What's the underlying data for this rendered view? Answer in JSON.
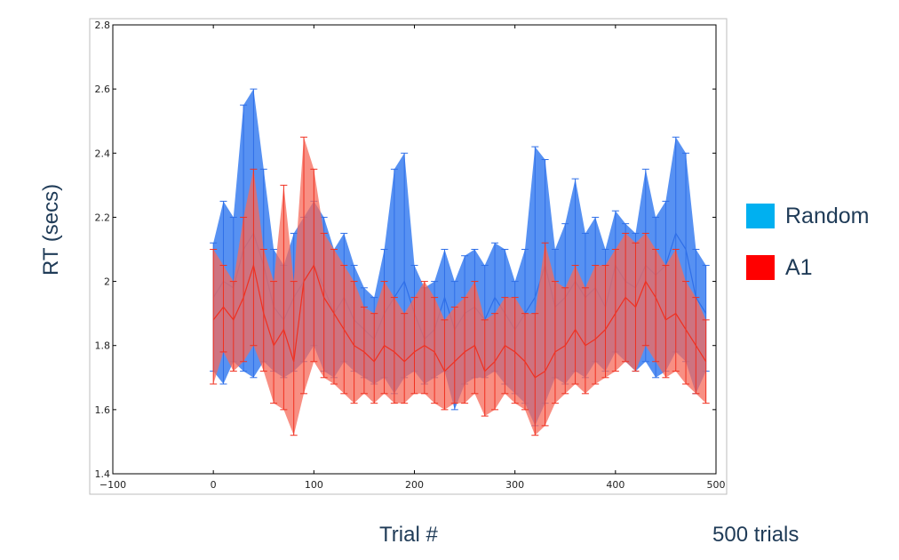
{
  "chart_data": {
    "type": "line",
    "xlabel": "Trial #",
    "ylabel": "RT (secs)",
    "annotation": "500 trials",
    "xlim": [
      -100,
      500
    ],
    "ylim": [
      1.4,
      2.8
    ],
    "xticks": [
      "−100",
      "0",
      "100",
      "200",
      "300",
      "400",
      "500"
    ],
    "xtick_values": [
      -100,
      0,
      100,
      200,
      300,
      400,
      500
    ],
    "yticks": [
      "1.4",
      "1.6",
      "1.8",
      "2",
      "2.2",
      "2.4",
      "2.6",
      "2.8"
    ],
    "ytick_values": [
      1.4,
      1.6,
      1.8,
      2.0,
      2.2,
      2.4,
      2.6,
      2.8
    ],
    "grid": false,
    "legend_position": "right, outside",
    "x": [
      0,
      10,
      20,
      30,
      40,
      50,
      60,
      70,
      80,
      90,
      100,
      110,
      120,
      130,
      140,
      150,
      160,
      170,
      180,
      190,
      200,
      210,
      220,
      230,
      240,
      250,
      260,
      270,
      280,
      290,
      300,
      310,
      320,
      330,
      340,
      350,
      360,
      370,
      380,
      390,
      400,
      410,
      420,
      430,
      440,
      450,
      460,
      470,
      480,
      490
    ],
    "series": [
      {
        "name": "Random",
        "color": "#2f6fe8",
        "fill": "#3a7ef0",
        "mean": [
          1.95,
          2.0,
          1.98,
          2.1,
          2.15,
          2.05,
          1.92,
          1.88,
          1.95,
          2.0,
          2.05,
          1.98,
          1.9,
          1.95,
          1.88,
          1.85,
          1.82,
          1.9,
          1.95,
          2.0,
          1.9,
          1.82,
          1.85,
          1.95,
          1.85,
          1.9,
          1.92,
          1.88,
          1.95,
          1.9,
          1.85,
          1.9,
          1.95,
          2.05,
          1.92,
          1.95,
          2.0,
          1.95,
          1.98,
          1.92,
          2.05,
          2.0,
          1.98,
          2.05,
          2.02,
          2.05,
          2.15,
          2.1,
          1.95,
          1.9
        ],
        "upper": [
          2.12,
          2.25,
          2.2,
          2.55,
          2.6,
          2.35,
          2.1,
          2.05,
          2.15,
          2.2,
          2.25,
          2.2,
          2.1,
          2.15,
          2.05,
          1.98,
          1.95,
          2.1,
          2.35,
          2.4,
          2.05,
          1.98,
          2.0,
          2.1,
          2.0,
          2.08,
          2.1,
          2.05,
          2.12,
          2.1,
          2.0,
          2.1,
          2.42,
          2.38,
          2.1,
          2.18,
          2.32,
          2.15,
          2.2,
          2.1,
          2.22,
          2.18,
          2.15,
          2.35,
          2.2,
          2.25,
          2.45,
          2.4,
          2.1,
          2.05
        ],
        "lower": [
          1.72,
          1.68,
          1.75,
          1.72,
          1.7,
          1.75,
          1.72,
          1.7,
          1.72,
          1.75,
          1.8,
          1.72,
          1.7,
          1.75,
          1.72,
          1.7,
          1.68,
          1.7,
          1.65,
          1.7,
          1.72,
          1.68,
          1.7,
          1.72,
          1.6,
          1.68,
          1.7,
          1.7,
          1.72,
          1.68,
          1.65,
          1.62,
          1.55,
          1.62,
          1.7,
          1.68,
          1.72,
          1.7,
          1.75,
          1.72,
          1.78,
          1.75,
          1.72,
          1.75,
          1.7,
          1.72,
          1.78,
          1.75,
          1.65,
          1.72
        ]
      },
      {
        "name": "A1",
        "color": "#f03020",
        "fill": "#f66a5a",
        "mean": [
          1.88,
          1.92,
          1.88,
          1.95,
          2.05,
          1.9,
          1.8,
          1.85,
          1.75,
          2.0,
          2.05,
          1.95,
          1.9,
          1.85,
          1.8,
          1.78,
          1.75,
          1.8,
          1.78,
          1.75,
          1.78,
          1.8,
          1.78,
          1.72,
          1.75,
          1.78,
          1.8,
          1.72,
          1.75,
          1.8,
          1.78,
          1.75,
          1.7,
          1.72,
          1.78,
          1.8,
          1.85,
          1.8,
          1.82,
          1.85,
          1.9,
          1.95,
          1.92,
          2.0,
          1.95,
          1.88,
          1.9,
          1.85,
          1.8,
          1.75
        ],
        "upper": [
          2.1,
          2.05,
          2.0,
          2.2,
          2.35,
          2.1,
          2.0,
          2.3,
          2.0,
          2.45,
          2.35,
          2.15,
          2.1,
          2.05,
          2.0,
          1.92,
          1.9,
          2.0,
          1.95,
          1.9,
          1.95,
          2.0,
          1.95,
          1.88,
          1.92,
          1.95,
          2.0,
          1.88,
          1.9,
          1.95,
          1.95,
          1.9,
          1.9,
          2.12,
          2.0,
          1.98,
          2.05,
          1.98,
          2.05,
          2.05,
          2.1,
          2.15,
          2.12,
          2.15,
          2.1,
          2.05,
          2.1,
          2.0,
          1.95,
          1.88
        ],
        "lower": [
          1.68,
          1.78,
          1.72,
          1.75,
          1.8,
          1.72,
          1.62,
          1.6,
          1.52,
          1.65,
          1.75,
          1.7,
          1.68,
          1.65,
          1.62,
          1.65,
          1.62,
          1.65,
          1.62,
          1.62,
          1.65,
          1.65,
          1.62,
          1.6,
          1.62,
          1.62,
          1.65,
          1.58,
          1.6,
          1.65,
          1.62,
          1.6,
          1.52,
          1.55,
          1.62,
          1.65,
          1.68,
          1.65,
          1.68,
          1.7,
          1.72,
          1.75,
          1.72,
          1.8,
          1.75,
          1.7,
          1.72,
          1.68,
          1.65,
          1.62
        ]
      }
    ]
  }
}
